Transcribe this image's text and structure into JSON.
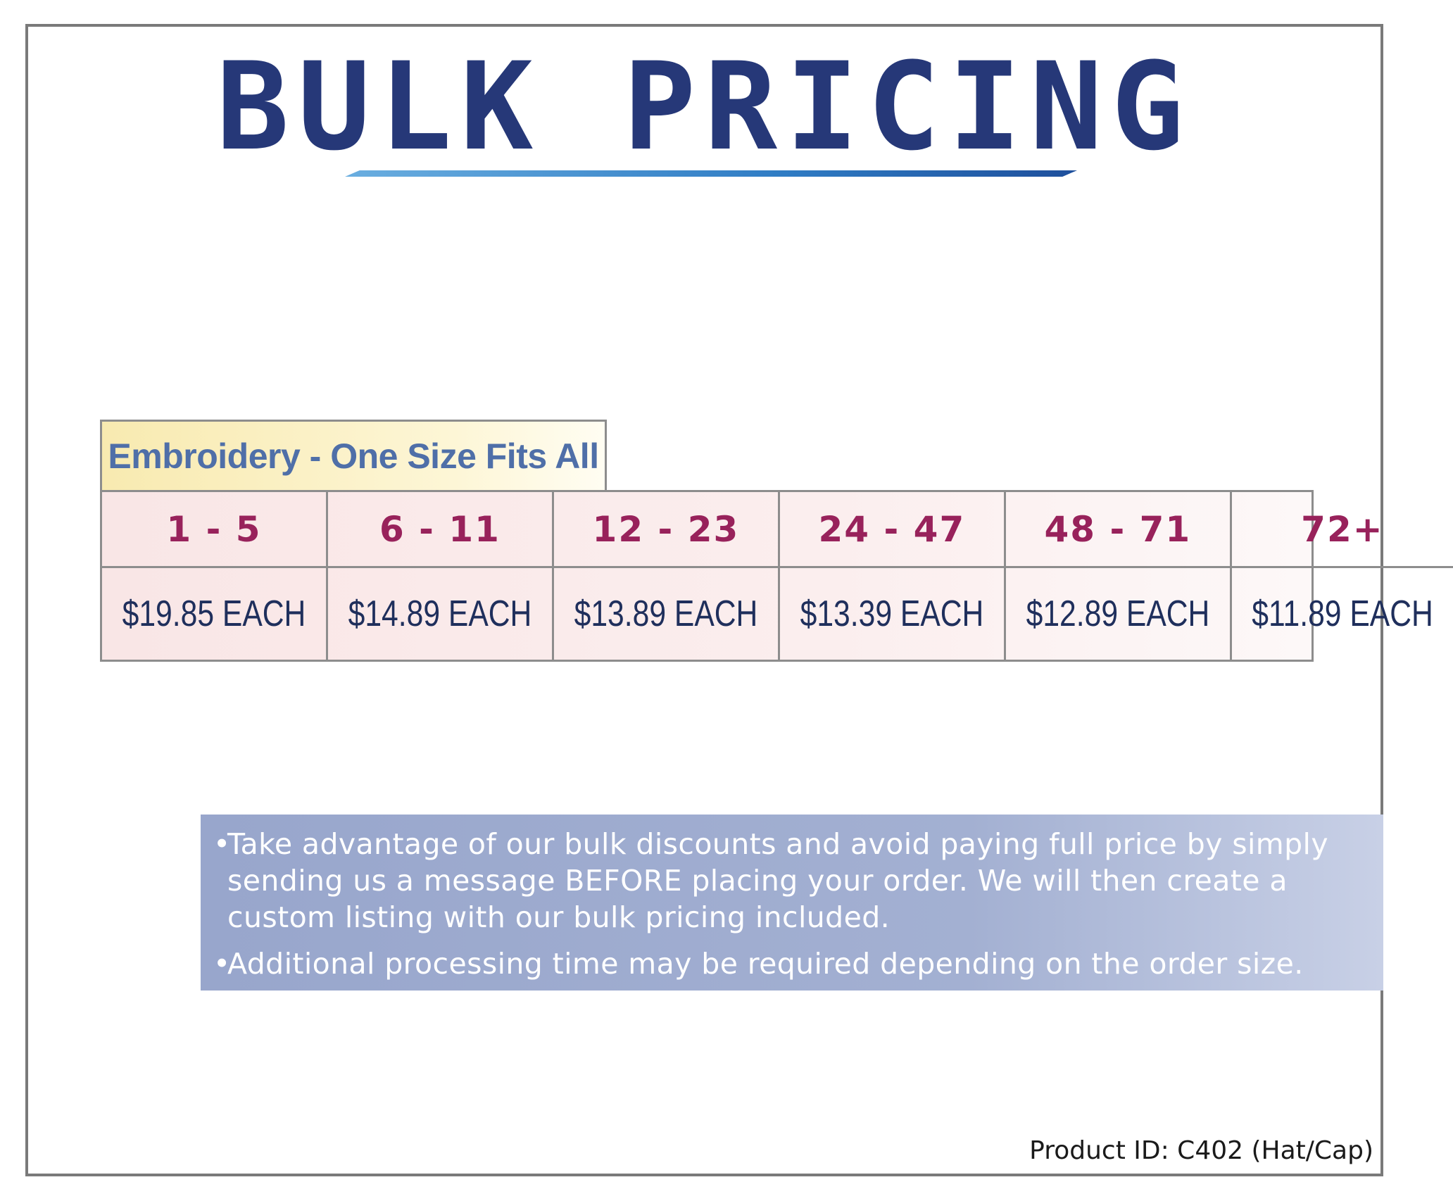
{
  "title": "BULK PRICING",
  "table": {
    "header": "Embroidery - One Size Fits All",
    "quantities": [
      "1 - 5",
      "6 - 11",
      "12 - 23",
      "24 - 47",
      "48 - 71",
      "72+"
    ],
    "prices": [
      "$19.85 EACH",
      "$14.89 EACH",
      "$13.89 EACH",
      "$13.39 EACH",
      "$12.89 EACH",
      "$11.89 EACH"
    ]
  },
  "notes": {
    "bullet": "•",
    "items": [
      "Take advantage of our bulk discounts and avoid paying full price by simply sending us a message BEFORE placing your order. We will then create a custom listing with our bulk pricing included.",
      "Additional processing time may be required depending on the order size."
    ]
  },
  "footer": {
    "product_id": "Product ID: C402 (Hat/Cap)"
  },
  "colors": {
    "title": "#263878",
    "quantity_text": "#98225b",
    "price_text": "#1f2f5c",
    "header_text": "#4f6fa8",
    "note_bg": "#98a6cc"
  }
}
